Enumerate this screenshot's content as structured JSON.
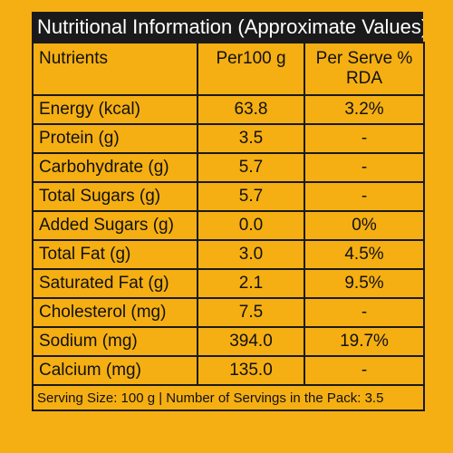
{
  "title": "Nutritional Information (Approximate Values)",
  "headers": {
    "nutrients": "Nutrients",
    "per100g": "Per100 g",
    "perserve": "Per Serve % RDA"
  },
  "rows": [
    {
      "nutrient": "Energy (kcal)",
      "per100g": "63.8",
      "rda": "3.2%"
    },
    {
      "nutrient": "Protein (g)",
      "per100g": "3.5",
      "rda": "-"
    },
    {
      "nutrient": "Carbohydrate (g)",
      "per100g": "5.7",
      "rda": "-"
    },
    {
      "nutrient": "Total Sugars (g)",
      "per100g": "5.7",
      "rda": "-"
    },
    {
      "nutrient": "Added Sugars (g)",
      "per100g": "0.0",
      "rda": "0%"
    },
    {
      "nutrient": "Total Fat (g)",
      "per100g": "3.0",
      "rda": "4.5%"
    },
    {
      "nutrient": "Saturated Fat (g)",
      "per100g": "2.1",
      "rda": "9.5%"
    },
    {
      "nutrient": "Cholesterol (mg)",
      "per100g": "7.5",
      "rda": "-"
    },
    {
      "nutrient": "Sodium (mg)",
      "per100g": "394.0",
      "rda": "19.7%"
    },
    {
      "nutrient": "Calcium (mg)",
      "per100g": "135.0",
      "rda": "-"
    }
  ],
  "footer": "Serving Size: 100 g | Number of Servings in the Pack: 3.5",
  "colors": {
    "background": "#f5af12",
    "title_bar": "#1a1a1a",
    "text": "#111111"
  }
}
